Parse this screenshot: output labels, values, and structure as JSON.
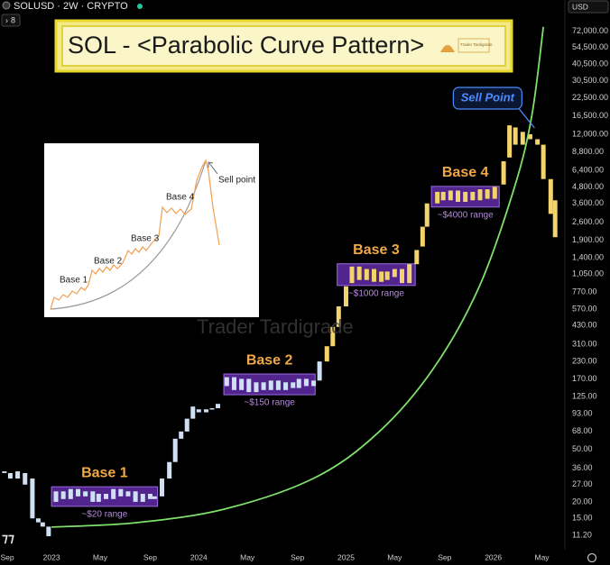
{
  "header": {
    "symbol": "SOLUSD · 2W · CRYPTO",
    "badge": "8"
  },
  "chart_data": {
    "type": "candlestick",
    "title": "SOL - <Parabolic Curve Pattern>",
    "logo_text": "Trader Tardigrade",
    "watermark": "Trader Tardigrade",
    "currency": "USD",
    "log_scale": true,
    "xlim": [
      2022.65,
      2026.48
    ],
    "ylim": [
      8.7,
      124000
    ],
    "xticks": [
      {
        "value": 2022.67,
        "label": "Sep"
      },
      2023,
      {
        "value": 2023.33,
        "label": "May"
      },
      {
        "value": 2023.67,
        "label": "Sep"
      },
      2024,
      {
        "value": 2024.33,
        "label": "May"
      },
      {
        "value": 2024.67,
        "label": "Sep"
      },
      2025,
      {
        "value": 2025.33,
        "label": "May"
      },
      {
        "value": 2025.67,
        "label": "Sep"
      },
      2026,
      {
        "value": 2026.33,
        "label": "May"
      }
    ],
    "yticks": [
      {
        "value": 72000,
        "label": "72,000.00"
      },
      {
        "value": 54500,
        "label": "54,500.00"
      },
      {
        "value": 40500,
        "label": "40,500.00"
      },
      {
        "value": 30500,
        "label": "30,500.00"
      },
      {
        "value": 22500,
        "label": "22,500.00"
      },
      {
        "value": 16500,
        "label": "16,500.00"
      },
      {
        "value": 12000,
        "label": "12,000.00"
      },
      {
        "value": 8800,
        "label": "8,800.00"
      },
      {
        "value": 6400,
        "label": "6,400.00"
      },
      {
        "value": 4800,
        "label": "4,800.00"
      },
      {
        "value": 3600,
        "label": "3,600.00"
      },
      {
        "value": 2600,
        "label": "2,600.00"
      },
      {
        "value": 1900,
        "label": "1,900.00"
      },
      {
        "value": 1400,
        "label": "1,400.00"
      },
      {
        "value": 1050,
        "label": "1,050.00"
      },
      {
        "value": 770,
        "label": "770.00"
      },
      {
        "value": 570,
        "label": "570.00"
      },
      {
        "value": 430,
        "label": "430.00"
      },
      {
        "value": 310,
        "label": "310.00"
      },
      {
        "value": 230,
        "label": "230.00"
      },
      {
        "value": 170,
        "label": "170.00"
      },
      {
        "value": 125,
        "label": "125.00"
      },
      {
        "value": 93,
        "label": "93.00"
      },
      {
        "value": 68,
        "label": "68.00"
      },
      {
        "value": 50,
        "label": "50.00"
      },
      {
        "value": 36,
        "label": "36.00"
      },
      {
        "value": 27,
        "label": "27.00"
      },
      {
        "value": 20,
        "label": "20.00"
      },
      {
        "value": 15,
        "label": "15.00"
      },
      {
        "value": 11.2,
        "label": "11.20"
      }
    ],
    "candles": [
      {
        "color": "#cfe0f5",
        "x": [
          2022.68,
          2022.72,
          2022.77,
          2022.82,
          2022.87,
          2022.91,
          2022.94,
          2022.98,
          2023.03,
          2023.08,
          2023.13,
          2023.18,
          2023.23,
          2023.28,
          2023.32,
          2023.37,
          2023.42,
          2023.47,
          2023.52,
          2023.57,
          2023.62,
          2023.67,
          2023.7,
          2023.75,
          2023.8,
          2023.84,
          2023.88,
          2023.92,
          2023.96,
          2024.0,
          2024.05,
          2024.09,
          2024.13,
          2024.19,
          2024.24,
          2024.29,
          2024.34,
          2024.39,
          2024.44,
          2024.49,
          2024.54,
          2024.59,
          2024.64,
          2024.68,
          2024.73,
          2024.78,
          2024.82
        ],
        "open": [
          34,
          33,
          30,
          33,
          30,
          15,
          14,
          13,
          20,
          24,
          21,
          25,
          22,
          24,
          20,
          23,
          21,
          25,
          22,
          24,
          20,
          23,
          21,
          22,
          30,
          40,
          60,
          68,
          85,
          100,
          95,
          100,
          102,
          150,
          175,
          140,
          170,
          135,
          160,
          140,
          165,
          140,
          160,
          145,
          170,
          150,
          165
        ],
        "close": [
          33,
          30,
          34,
          27,
          15,
          14,
          13,
          11,
          24,
          21,
          25,
          22,
          24,
          20,
          23,
          21,
          25,
          22,
          24,
          20,
          23,
          21,
          22,
          30,
          40,
          60,
          68,
          85,
          105,
          95,
          100,
          102,
          110,
          175,
          140,
          170,
          135,
          160,
          140,
          165,
          140,
          160,
          145,
          170,
          150,
          165,
          230
        ]
      },
      {
        "color": "#f3d36b",
        "x": [
          2024.87,
          2024.91,
          2024.95,
          2025.0,
          2025.04,
          2025.09,
          2025.14,
          2025.19,
          2025.24,
          2025.28,
          2025.33,
          2025.38,
          2025.43,
          2025.48,
          2025.52,
          2025.55,
          2025.62,
          2025.66,
          2025.71,
          2025.76,
          2025.81,
          2025.86,
          2025.91,
          2025.96,
          2026.01,
          2026.07,
          2026.11,
          2026.15,
          2026.2,
          2026.25,
          2026.3,
          2026.34,
          2026.39,
          2026.42
        ],
        "open": [
          230,
          300,
          420,
          600,
          900,
          1200,
          950,
          1150,
          920,
          1100,
          1000,
          1150,
          900,
          1250,
          1700,
          2400,
          3600,
          4400,
          3800,
          4500,
          3700,
          4400,
          3800,
          4600,
          3900,
          5000,
          8000,
          13500,
          10000,
          12000,
          11000,
          10000,
          5500,
          3800
        ],
        "close": [
          300,
          420,
          600,
          850,
          1200,
          950,
          1150,
          920,
          1100,
          950,
          1150,
          900,
          1250,
          1600,
          2400,
          3600,
          4400,
          3800,
          4500,
          3700,
          4400,
          3800,
          4600,
          3900,
          4800,
          7500,
          14000,
          10000,
          12500,
          11000,
          10000,
          5500,
          3000,
          2000
        ]
      }
    ],
    "curve": {
      "color": "#7ee06a",
      "x": [
        2023.0,
        2023.57,
        2024.18,
        2024.79,
        2025.22,
        2025.59,
        2025.9,
        2026.14,
        2026.26,
        2026.34
      ],
      "values": [
        12.9,
        13.9,
        17.7,
        30.5,
        67,
        201,
        824,
        4620,
        16200,
        77800
      ]
    },
    "bases": [
      {
        "label": "Base 1",
        "range_label": "~$20 range",
        "x": [
          2023.0,
          2023.72
        ],
        "range": [
          18.5,
          26
        ]
      },
      {
        "label": "Base 2",
        "range_label": "~$150 range",
        "x": [
          2024.17,
          2024.79
        ],
        "range": [
          129,
          185
        ]
      },
      {
        "label": "Base 3",
        "range_label": "~$1000 range",
        "x": [
          2024.94,
          2025.47
        ],
        "range": [
          863,
          1259
        ]
      },
      {
        "label": "Base 4",
        "range_label": "~$4000 range",
        "x": [
          2025.58,
          2026.04
        ],
        "range": [
          3380,
          4840
        ]
      }
    ],
    "sell_point": {
      "label": "Sell Point",
      "x": 2026.28,
      "value": 13380
    },
    "inset": {
      "labels": [
        "Base 1",
        "Base 2",
        "Base 3",
        "Base 4"
      ],
      "sell_label": "Sell point"
    }
  }
}
